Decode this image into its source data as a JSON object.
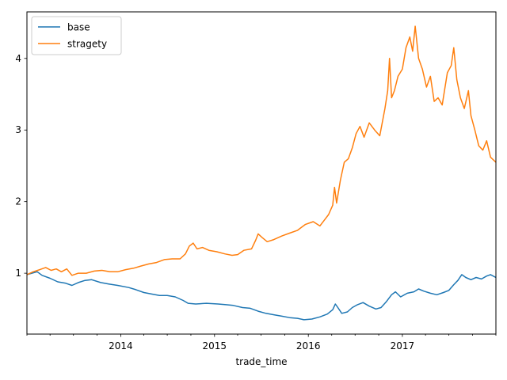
{
  "chart_data": {
    "type": "line",
    "title": "",
    "xlabel": "trade_time",
    "ylabel": "",
    "x_range": [
      "2013-01-01",
      "2017-12-31"
    ],
    "ylim": [
      0.15,
      4.65
    ],
    "grid": false,
    "legend_position": "top-left",
    "x_major_ticks": [
      {
        "date": "2014-01-01",
        "label": "2014"
      },
      {
        "date": "2015-01-01",
        "label": "2015"
      },
      {
        "date": "2016-01-01",
        "label": "2016"
      },
      {
        "date": "2017-01-01",
        "label": "2017"
      }
    ],
    "x_minor_ticks": [
      "2013-01-01",
      "2013-04-01",
      "2013-07-01",
      "2013-10-01",
      "2014-04-01",
      "2014-07-01",
      "2014-10-01",
      "2015-04-01",
      "2015-07-01",
      "2015-10-01",
      "2016-04-01",
      "2016-07-01",
      "2016-10-01",
      "2017-04-01",
      "2017-07-01",
      "2017-10-01",
      "2017-12-31"
    ],
    "y_ticks": [
      1,
      2,
      3,
      4
    ],
    "series": [
      {
        "name": "base",
        "color": "#1f77b4",
        "points": [
          [
            "2013-01-01",
            0.98
          ],
          [
            "2013-01-20",
            1.0
          ],
          [
            "2013-02-10",
            1.02
          ],
          [
            "2013-03-01",
            0.97
          ],
          [
            "2013-04-01",
            0.93
          ],
          [
            "2013-05-01",
            0.88
          ],
          [
            "2013-06-01",
            0.86
          ],
          [
            "2013-06-25",
            0.83
          ],
          [
            "2013-07-20",
            0.87
          ],
          [
            "2013-08-15",
            0.9
          ],
          [
            "2013-09-10",
            0.91
          ],
          [
            "2013-10-15",
            0.87
          ],
          [
            "2013-11-15",
            0.85
          ],
          [
            "2013-12-20",
            0.83
          ],
          [
            "2014-02-01",
            0.8
          ],
          [
            "2014-03-01",
            0.77
          ],
          [
            "2014-04-01",
            0.73
          ],
          [
            "2014-05-01",
            0.71
          ],
          [
            "2014-06-01",
            0.69
          ],
          [
            "2014-07-01",
            0.69
          ],
          [
            "2014-08-01",
            0.67
          ],
          [
            "2014-09-01",
            0.62
          ],
          [
            "2014-09-20",
            0.58
          ],
          [
            "2014-10-20",
            0.57
          ],
          [
            "2014-12-01",
            0.58
          ],
          [
            "2015-01-15",
            0.57
          ],
          [
            "2015-02-15",
            0.56
          ],
          [
            "2015-03-15",
            0.55
          ],
          [
            "2015-04-20",
            0.52
          ],
          [
            "2015-05-20",
            0.51
          ],
          [
            "2015-06-20",
            0.47
          ],
          [
            "2015-07-20",
            0.44
          ],
          [
            "2015-08-20",
            0.42
          ],
          [
            "2015-09-20",
            0.4
          ],
          [
            "2015-10-20",
            0.38
          ],
          [
            "2015-11-20",
            0.37
          ],
          [
            "2015-12-15",
            0.35
          ],
          [
            "2016-01-15",
            0.36
          ],
          [
            "2016-02-15",
            0.39
          ],
          [
            "2016-03-15",
            0.43
          ],
          [
            "2016-04-05",
            0.49
          ],
          [
            "2016-04-15",
            0.57
          ],
          [
            "2016-04-25",
            0.52
          ],
          [
            "2016-05-10",
            0.44
          ],
          [
            "2016-06-01",
            0.46
          ],
          [
            "2016-06-20",
            0.52
          ],
          [
            "2016-07-10",
            0.56
          ],
          [
            "2016-08-01",
            0.59
          ],
          [
            "2016-08-25",
            0.54
          ],
          [
            "2016-09-20",
            0.5
          ],
          [
            "2016-10-10",
            0.52
          ],
          [
            "2016-10-30",
            0.6
          ],
          [
            "2016-11-20",
            0.7
          ],
          [
            "2016-12-05",
            0.74
          ],
          [
            "2016-12-25",
            0.67
          ],
          [
            "2017-01-20",
            0.72
          ],
          [
            "2017-02-15",
            0.74
          ],
          [
            "2017-03-05",
            0.78
          ],
          [
            "2017-03-25",
            0.75
          ],
          [
            "2017-04-20",
            0.72
          ],
          [
            "2017-05-15",
            0.7
          ],
          [
            "2017-06-10",
            0.73
          ],
          [
            "2017-07-01",
            0.76
          ],
          [
            "2017-07-20",
            0.84
          ],
          [
            "2017-08-05",
            0.9
          ],
          [
            "2017-08-20",
            0.98
          ],
          [
            "2017-09-05",
            0.94
          ],
          [
            "2017-09-25",
            0.91
          ],
          [
            "2017-10-15",
            0.94
          ],
          [
            "2017-11-05",
            0.92
          ],
          [
            "2017-11-25",
            0.96
          ],
          [
            "2017-12-10",
            0.98
          ],
          [
            "2017-12-31",
            0.94
          ]
        ]
      },
      {
        "name": "stragety",
        "color": "#ff7f0e",
        "points": [
          [
            "2013-01-01",
            0.98
          ],
          [
            "2013-01-25",
            1.02
          ],
          [
            "2013-02-20",
            1.05
          ],
          [
            "2013-03-15",
            1.08
          ],
          [
            "2013-04-05",
            1.04
          ],
          [
            "2013-04-25",
            1.06
          ],
          [
            "2013-05-15",
            1.02
          ],
          [
            "2013-06-05",
            1.06
          ],
          [
            "2013-06-25",
            0.97
          ],
          [
            "2013-07-20",
            1.0
          ],
          [
            "2013-08-20",
            1.0
          ],
          [
            "2013-09-20",
            1.03
          ],
          [
            "2013-10-20",
            1.04
          ],
          [
            "2013-11-20",
            1.02
          ],
          [
            "2013-12-20",
            1.02
          ],
          [
            "2014-01-20",
            1.05
          ],
          [
            "2014-02-20",
            1.07
          ],
          [
            "2014-03-20",
            1.1
          ],
          [
            "2014-04-20",
            1.13
          ],
          [
            "2014-05-20",
            1.15
          ],
          [
            "2014-06-20",
            1.19
          ],
          [
            "2014-07-20",
            1.2
          ],
          [
            "2014-08-20",
            1.2
          ],
          [
            "2014-09-10",
            1.27
          ],
          [
            "2014-09-25",
            1.38
          ],
          [
            "2014-10-10",
            1.42
          ],
          [
            "2014-10-25",
            1.34
          ],
          [
            "2014-11-15",
            1.36
          ],
          [
            "2014-12-10",
            1.32
          ],
          [
            "2015-01-10",
            1.3
          ],
          [
            "2015-02-10",
            1.27
          ],
          [
            "2015-03-10",
            1.25
          ],
          [
            "2015-04-01",
            1.26
          ],
          [
            "2015-04-25",
            1.32
          ],
          [
            "2015-05-25",
            1.34
          ],
          [
            "2015-06-10",
            1.46
          ],
          [
            "2015-06-20",
            1.55
          ],
          [
            "2015-07-05",
            1.5
          ],
          [
            "2015-07-25",
            1.44
          ],
          [
            "2015-08-20",
            1.47
          ],
          [
            "2015-09-20",
            1.52
          ],
          [
            "2015-10-20",
            1.56
          ],
          [
            "2015-11-20",
            1.6
          ],
          [
            "2015-12-20",
            1.68
          ],
          [
            "2016-01-20",
            1.72
          ],
          [
            "2016-02-15",
            1.66
          ],
          [
            "2016-03-05",
            1.75
          ],
          [
            "2016-03-20",
            1.82
          ],
          [
            "2016-04-05",
            1.95
          ],
          [
            "2016-04-12",
            2.2
          ],
          [
            "2016-04-20",
            1.98
          ],
          [
            "2016-05-05",
            2.3
          ],
          [
            "2016-05-20",
            2.55
          ],
          [
            "2016-06-05",
            2.6
          ],
          [
            "2016-06-20",
            2.75
          ],
          [
            "2016-07-05",
            2.95
          ],
          [
            "2016-07-20",
            3.05
          ],
          [
            "2016-08-05",
            2.9
          ],
          [
            "2016-08-25",
            3.1
          ],
          [
            "2016-09-15",
            3.0
          ],
          [
            "2016-10-05",
            2.92
          ],
          [
            "2016-10-25",
            3.3
          ],
          [
            "2016-11-05",
            3.55
          ],
          [
            "2016-11-12",
            4.0
          ],
          [
            "2016-11-20",
            3.45
          ],
          [
            "2016-12-01",
            3.55
          ],
          [
            "2016-12-15",
            3.75
          ],
          [
            "2017-01-01",
            3.85
          ],
          [
            "2017-01-15",
            4.15
          ],
          [
            "2017-01-30",
            4.3
          ],
          [
            "2017-02-10",
            4.1
          ],
          [
            "2017-02-20",
            4.45
          ],
          [
            "2017-03-05",
            4.0
          ],
          [
            "2017-03-20",
            3.85
          ],
          [
            "2017-04-05",
            3.6
          ],
          [
            "2017-04-20",
            3.75
          ],
          [
            "2017-05-05",
            3.4
          ],
          [
            "2017-05-20",
            3.45
          ],
          [
            "2017-06-05",
            3.35
          ],
          [
            "2017-06-25",
            3.8
          ],
          [
            "2017-07-10",
            3.9
          ],
          [
            "2017-07-20",
            4.15
          ],
          [
            "2017-08-01",
            3.7
          ],
          [
            "2017-08-15",
            3.45
          ],
          [
            "2017-08-30",
            3.3
          ],
          [
            "2017-09-15",
            3.55
          ],
          [
            "2017-09-25",
            3.2
          ],
          [
            "2017-10-10",
            3.0
          ],
          [
            "2017-10-25",
            2.78
          ],
          [
            "2017-11-10",
            2.72
          ],
          [
            "2017-11-25",
            2.85
          ],
          [
            "2017-12-10",
            2.62
          ],
          [
            "2017-12-31",
            2.55
          ]
        ]
      }
    ]
  }
}
